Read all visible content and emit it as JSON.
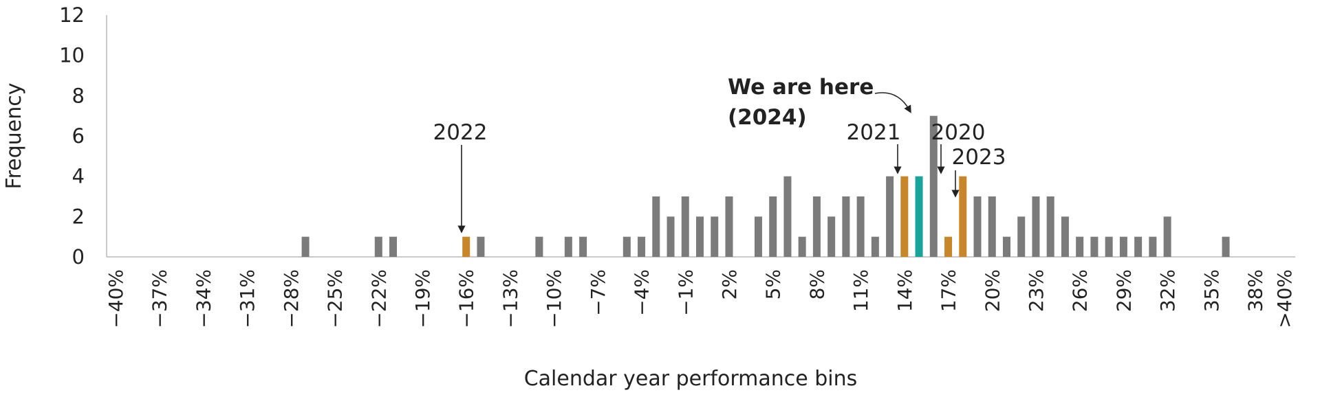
{
  "chart_data": {
    "type": "bar",
    "title": "",
    "xlabel": "Calendar year performance bins",
    "ylabel": "Frequency",
    "ylim": [
      0,
      12
    ],
    "yticks": [
      0,
      2,
      4,
      6,
      8,
      10,
      12
    ],
    "grid": false,
    "legend": "none",
    "colors": {
      "default": "#7a7b7a",
      "highlight": "#c8862a",
      "current": "#1aa39a",
      "axis": "#b9b9b9",
      "text": "#222222"
    },
    "categories": [
      "−40%",
      "−39%",
      "−38%",
      "−37%",
      "−36%",
      "−35%",
      "−34%",
      "−33%",
      "−32%",
      "−31%",
      "−30%",
      "−29%",
      "−28%",
      "−27%",
      "−26%",
      "−25%",
      "−24%",
      "−23%",
      "−22%",
      "−21%",
      "−20%",
      "−19%",
      "−18%",
      "−17%",
      "−16%",
      "−15%",
      "−14%",
      "−13%",
      "−12%",
      "−11%",
      "−10%",
      "−9%",
      "−8%",
      "−7%",
      "−6%",
      "−5%",
      "−4%",
      "−3%",
      "−2%",
      "−1%",
      "0%",
      "1%",
      "2%",
      "3%",
      "4%",
      "5%",
      "6%",
      "7%",
      "8%",
      "9%",
      "10%",
      "11%",
      "12%",
      "13%",
      "14%",
      "15%",
      "16%",
      "17%",
      "18%",
      "19%",
      "20%",
      "21%",
      "22%",
      "23%",
      "24%",
      "25%",
      "26%",
      "27%",
      "28%",
      "29%",
      "30%",
      "31%",
      "32%",
      "33%",
      "34%",
      "35%",
      "36%",
      "37%",
      "38%",
      "39%",
      ">40%"
    ],
    "tick_labels": [
      "−40%",
      "−37%",
      "−34%",
      "−31%",
      "−28%",
      "−25%",
      "−22%",
      "−19%",
      "−16%",
      "−13%",
      "−10%",
      "−7%",
      "−4%",
      "−1%",
      "2%",
      "5%",
      "8%",
      "11%",
      "14%",
      "17%",
      "20%",
      "23%",
      "26%",
      "29%",
      "32%",
      "35%",
      "38%",
      ">40%"
    ],
    "values": [
      0,
      0,
      0,
      0,
      0,
      0,
      0,
      0,
      0,
      0,
      0,
      0,
      0,
      1,
      0,
      0,
      0,
      0,
      1,
      1,
      0,
      0,
      0,
      0,
      1,
      1,
      0,
      0,
      0,
      1,
      0,
      1,
      1,
      0,
      0,
      1,
      1,
      3,
      2,
      3,
      2,
      2,
      3,
      0,
      2,
      3,
      4,
      1,
      3,
      2,
      3,
      3,
      1,
      4,
      4,
      4,
      7,
      1,
      4,
      3,
      3,
      1,
      2,
      3,
      3,
      2,
      1,
      1,
      1,
      1,
      1,
      1,
      2,
      0,
      0,
      0,
      1,
      0,
      0,
      0,
      0
    ],
    "highlights": {
      "2022": "−16%",
      "2021": "14%",
      "2020": "17%",
      "2023": "18%",
      "current": "15%"
    },
    "annotations": {
      "y2022": "2022",
      "y2021": "2021",
      "y2020": "2020",
      "y2023": "2023",
      "here_line1": "We are here",
      "here_line2": "(2024)"
    }
  }
}
